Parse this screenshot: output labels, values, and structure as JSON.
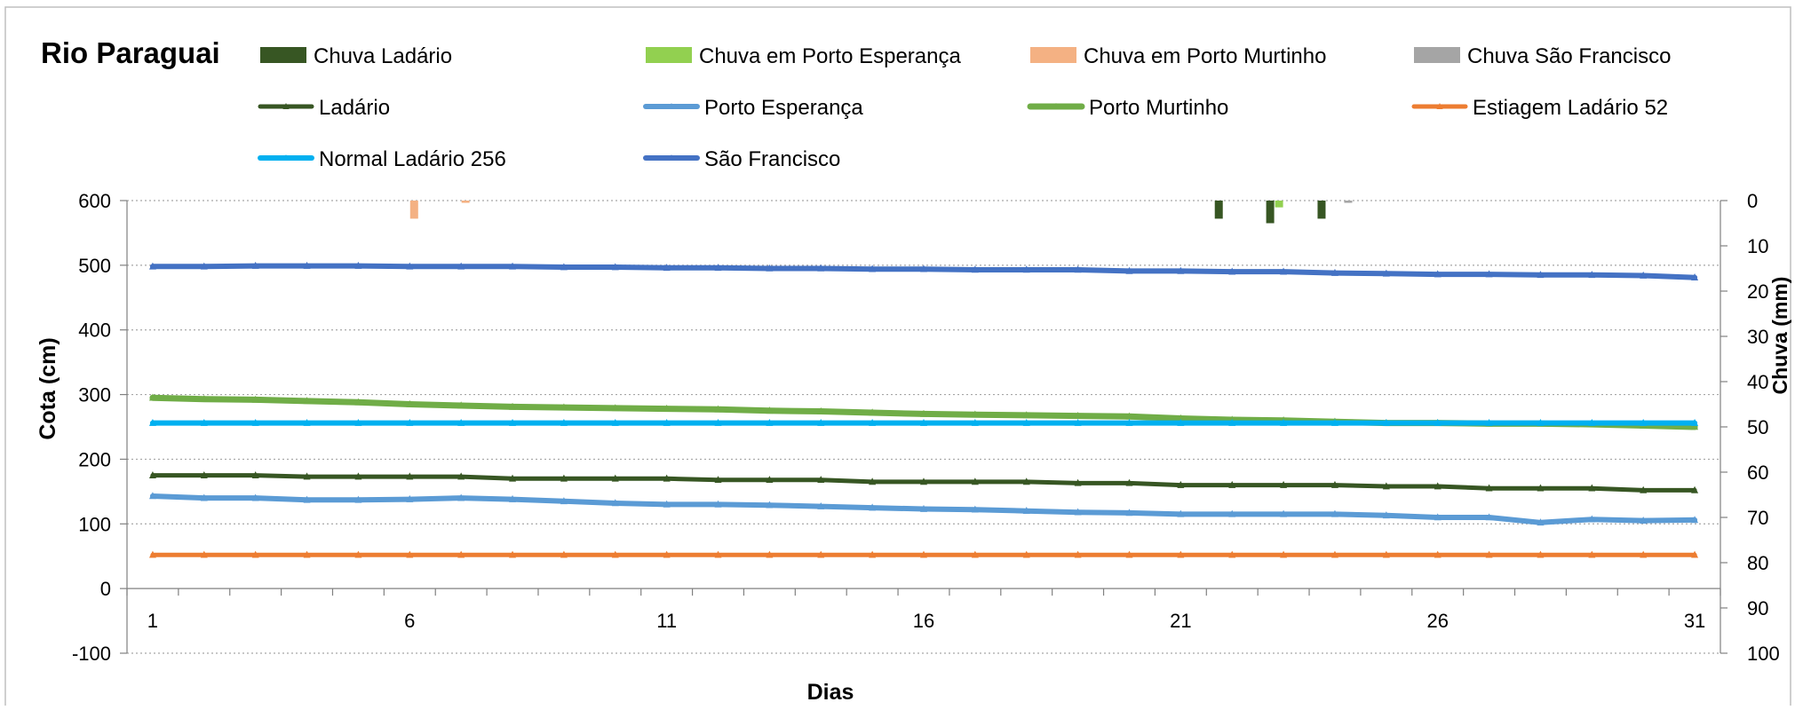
{
  "chart_data": {
    "type": "line",
    "title": "Rio Paraguai",
    "xlabel": "Dias",
    "ylabel": "Cota  (cm)",
    "y2label": "Chuva (mm)",
    "x": [
      1,
      2,
      3,
      4,
      5,
      6,
      7,
      8,
      9,
      10,
      11,
      12,
      13,
      14,
      15,
      16,
      17,
      18,
      19,
      20,
      21,
      22,
      23,
      24,
      25,
      26,
      27,
      28,
      29,
      30,
      31
    ],
    "x_tick_labels": [
      "1",
      "6",
      "11",
      "16",
      "21",
      "26",
      "31"
    ],
    "ylim": [
      -100,
      600
    ],
    "y_ticks": [
      -100,
      0,
      100,
      200,
      300,
      400,
      500,
      600
    ],
    "y2lim": [
      0,
      100
    ],
    "y2_reversed": true,
    "y2_ticks": [
      0,
      10,
      20,
      30,
      40,
      50,
      60,
      70,
      80,
      90,
      100
    ],
    "grid": "horizontal-dotted",
    "legend_position": "top",
    "series": [
      {
        "name": "Chuva Ladário",
        "kind": "bar",
        "axis": "y2",
        "color": "#375623",
        "values": [
          0,
          0,
          0,
          0,
          0,
          0,
          0,
          0,
          0,
          0,
          0,
          0,
          0,
          0,
          0,
          0,
          0,
          0,
          0,
          0,
          0,
          4,
          5,
          4,
          0,
          0,
          0,
          0,
          0,
          0,
          0
        ]
      },
      {
        "name": "Chuva em Porto Esperança",
        "kind": "bar",
        "axis": "y2",
        "color": "#92D050",
        "values": [
          0,
          0,
          0,
          0,
          0,
          0,
          0,
          0,
          0,
          0,
          0,
          0,
          0,
          0,
          0,
          0,
          0,
          0,
          0,
          0,
          0,
          0,
          1.5,
          0,
          0,
          0,
          0,
          0,
          0,
          0,
          0
        ]
      },
      {
        "name": "Chuva em Porto Murtinho",
        "kind": "bar",
        "axis": "y2",
        "color": "#F4B183",
        "values": [
          0,
          0,
          0,
          0,
          0,
          4,
          0.5,
          0,
          0,
          0,
          0,
          0,
          0,
          0,
          0,
          0,
          0,
          0,
          0,
          0,
          0,
          0,
          0,
          0,
          0,
          0,
          0,
          0,
          0,
          0,
          0
        ]
      },
      {
        "name": "Chuva São Francisco",
        "kind": "bar",
        "axis": "y2",
        "color": "#A5A5A5",
        "values": [
          0,
          0,
          0,
          0,
          0,
          0,
          0,
          0,
          0,
          0,
          0,
          0,
          0,
          0,
          0,
          0,
          0,
          0,
          0,
          0,
          0,
          0,
          0,
          0.5,
          0,
          0,
          0,
          0,
          0,
          0,
          0
        ]
      },
      {
        "name": "Ladário",
        "kind": "line",
        "axis": "y",
        "color": "#375623",
        "width": 5,
        "values": [
          175,
          175,
          175,
          173,
          173,
          173,
          173,
          170,
          170,
          170,
          170,
          168,
          168,
          168,
          165,
          165,
          165,
          165,
          163,
          163,
          160,
          160,
          160,
          160,
          158,
          158,
          155,
          155,
          155,
          152,
          152
        ]
      },
      {
        "name": "Porto Esperança",
        "kind": "line",
        "axis": "y",
        "color": "#5B9BD5",
        "width": 6,
        "values": [
          143,
          140,
          140,
          137,
          137,
          138,
          140,
          138,
          135,
          132,
          130,
          130,
          129,
          127,
          125,
          123,
          122,
          120,
          118,
          117,
          115,
          115,
          115,
          115,
          113,
          110,
          110,
          102,
          107,
          105,
          106
        ]
      },
      {
        "name": "Porto Murtinho",
        "kind": "line",
        "axis": "y",
        "color": "#70AD47",
        "width": 7,
        "values": [
          295,
          293,
          292,
          290,
          288,
          285,
          283,
          281,
          280,
          279,
          278,
          277,
          275,
          274,
          272,
          270,
          269,
          268,
          267,
          266,
          263,
          261,
          260,
          258,
          256,
          256,
          255,
          255,
          254,
          252,
          250
        ]
      },
      {
        "name": "Estiagem Ladário 52",
        "kind": "line",
        "axis": "y",
        "color": "#ED7D31",
        "width": 5,
        "values": [
          52,
          52,
          52,
          52,
          52,
          52,
          52,
          52,
          52,
          52,
          52,
          52,
          52,
          52,
          52,
          52,
          52,
          52,
          52,
          52,
          52,
          52,
          52,
          52,
          52,
          52,
          52,
          52,
          52,
          52,
          52
        ]
      },
      {
        "name": "Normal Ladário 256",
        "kind": "line",
        "axis": "y",
        "color": "#00B0F0",
        "width": 6,
        "values": [
          256,
          256,
          256,
          256,
          256,
          256,
          256,
          256,
          256,
          256,
          256,
          256,
          256,
          256,
          256,
          256,
          256,
          256,
          256,
          256,
          256,
          256,
          256,
          256,
          256,
          256,
          256,
          256,
          256,
          256,
          256
        ]
      },
      {
        "name": "São Francisco",
        "kind": "line",
        "axis": "y",
        "color": "#4472C4",
        "width": 6,
        "values": [
          498,
          498,
          499,
          499,
          499,
          498,
          498,
          498,
          497,
          497,
          496,
          496,
          495,
          495,
          494,
          494,
          493,
          493,
          493,
          491,
          491,
          490,
          490,
          488,
          487,
          486,
          486,
          485,
          485,
          484,
          481
        ]
      }
    ]
  }
}
